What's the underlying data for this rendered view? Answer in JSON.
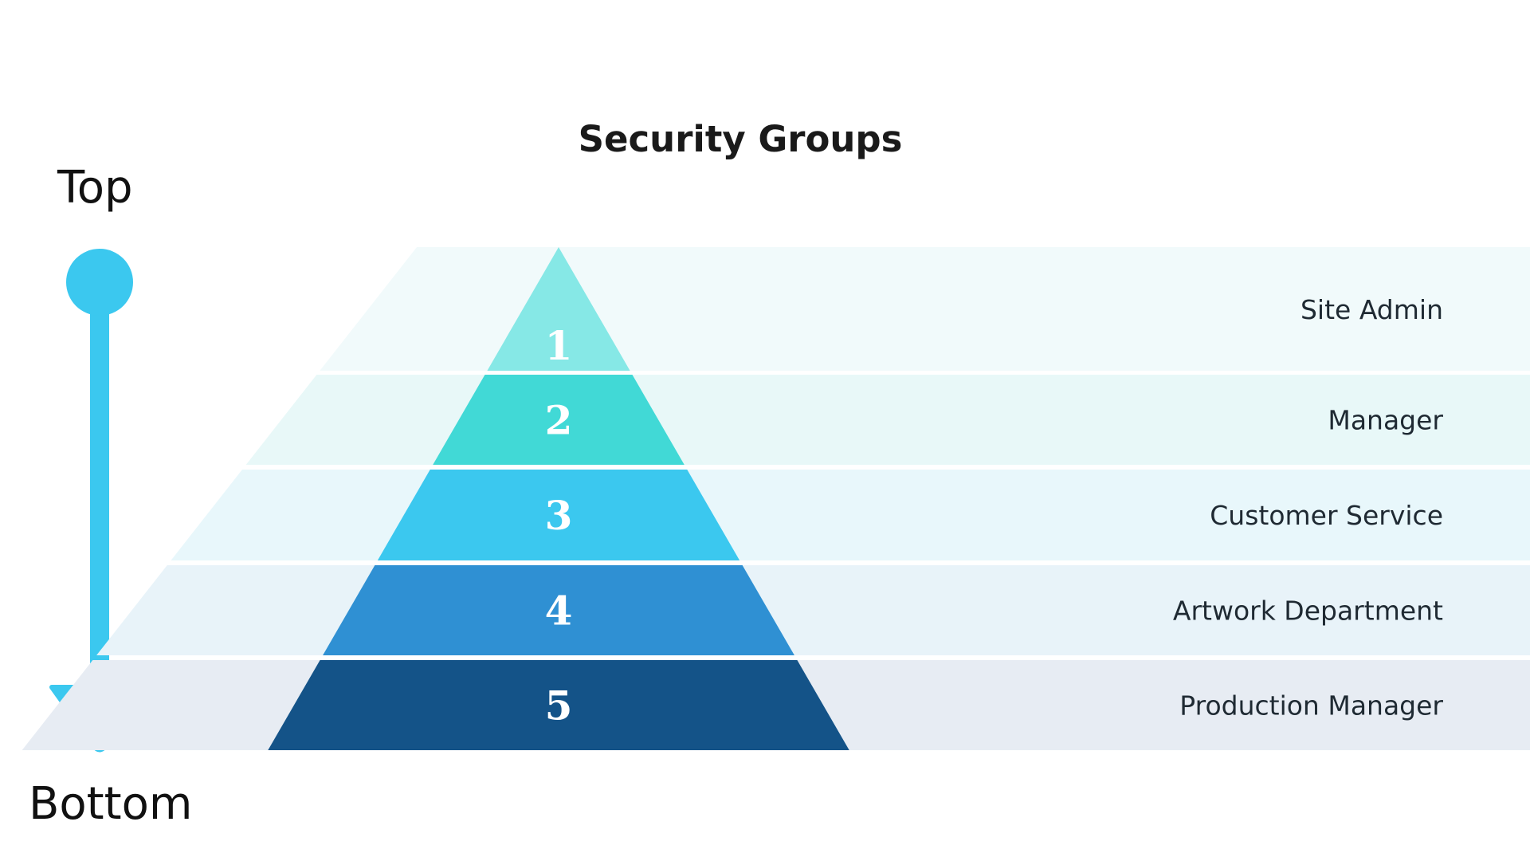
{
  "title": "Security Groups",
  "axis": {
    "top_label": "Top",
    "bottom_label": "Bottom"
  },
  "colors": {
    "arrow": "#3bc8ef",
    "title": "#1a1a1a"
  },
  "levels": [
    {
      "number": "1",
      "label": "Site Admin",
      "color": "#86e8e6",
      "band_color": "#f1fafb"
    },
    {
      "number": "2",
      "label": "Manager",
      "color": "#41d9d6",
      "band_color": "#e8f8f8"
    },
    {
      "number": "3",
      "label": "Customer Service",
      "color": "#3bc8ef",
      "band_color": "#e8f7fb"
    },
    {
      "number": "4",
      "label": "Artwork Department",
      "color": "#2f90d3",
      "band_color": "#e8f3f9"
    },
    {
      "number": "5",
      "label": "Production Manager",
      "color": "#145388",
      "band_color": "#e7ecf3"
    }
  ]
}
